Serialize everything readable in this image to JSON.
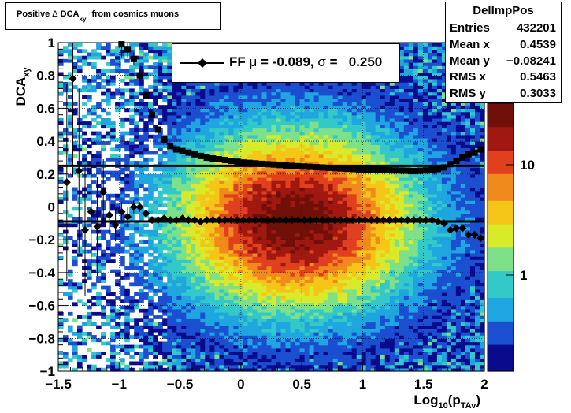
{
  "title": {
    "prefix": "Positive",
    "delta": "Δ",
    "main": "DCA",
    "sub": "xy",
    "suffix": "from cosmics muons"
  },
  "stats": {
    "name": "DelImpPos",
    "rows": [
      {
        "label": "Entries",
        "value": "432201"
      },
      {
        "label": "Mean x",
        "value": "0.4539"
      },
      {
        "label": "Mean y",
        "value": "−0.08241"
      },
      {
        "label": "RMS x",
        "value": "0.5463"
      },
      {
        "label": "RMS y",
        "value": "0.3033"
      }
    ]
  },
  "legend": {
    "entry": "FF",
    "mu_symbol": "μ",
    "mu_text": "= -0.089,",
    "sigma_symbol": "σ",
    "sigma_text": "=   0.250"
  },
  "axes": {
    "ylabel_main": "DCA",
    "ylabel_sub": "xy",
    "xlabel_main": "Log",
    "xlabel_sub10": "10",
    "xlabel_p": "(p",
    "xlabel_psub": "TAv",
    "xlabel_close": ")"
  },
  "colors": {
    "marker": "#000000",
    "palette": [
      "#0a0a8c",
      "#1b4fd0",
      "#1fa6e0",
      "#33c9c8",
      "#7fe08a",
      "#d8ea2a",
      "#f5c518",
      "#f08a1c",
      "#e0401e",
      "#a01810",
      "#701008"
    ]
  },
  "chart_data": {
    "type": "heatmap",
    "xlim": [
      -1.5,
      2.0
    ],
    "ylim": [
      -1.0,
      1.0
    ],
    "xticks": [
      "−1.5",
      "−1",
      "−0.5",
      "0",
      "0.5",
      "1",
      "1.5",
      "2"
    ],
    "yticks": [
      "−1",
      "−0.8",
      "−0.6",
      "−0.4",
      "−0.2",
      "0",
      "0.2",
      "0.4",
      "0.6",
      "0.8",
      "1"
    ],
    "zscale": "log",
    "zticks": [
      "1",
      "10"
    ],
    "grid": true,
    "heat_center": {
      "x": 0.45,
      "y": -0.08
    },
    "heat_width": {
      "x": 0.55,
      "y": 0.3
    },
    "reference_lines": [
      0.25,
      -0.089
    ],
    "series": [
      {
        "name": "sigma",
        "x": [
          -1.38,
          -1.33,
          -1.28,
          -1.23,
          -1.18,
          -1.13,
          -1.08,
          -1.03,
          -0.98,
          -0.93,
          -0.88,
          -0.83,
          -0.78,
          -0.73,
          -0.68,
          -0.63,
          -0.58,
          -0.53,
          -0.48,
          -0.43,
          -0.38,
          -0.33,
          -0.28,
          -0.23,
          -0.18,
          -0.13,
          -0.08,
          -0.03,
          0.02,
          0.07,
          0.12,
          0.17,
          0.22,
          0.27,
          0.32,
          0.37,
          0.42,
          0.47,
          0.52,
          0.57,
          0.62,
          0.67,
          0.72,
          0.77,
          0.82,
          0.87,
          0.92,
          0.97,
          1.02,
          1.07,
          1.12,
          1.17,
          1.22,
          1.27,
          1.32,
          1.37,
          1.42,
          1.47,
          1.52,
          1.57,
          1.62,
          1.67,
          1.72,
          1.77,
          1.82,
          1.87,
          1.92,
          1.97
        ],
        "y": [
          null,
          null,
          null,
          null,
          null,
          null,
          null,
          null,
          0.99,
          0.96,
          0.9,
          0.8,
          0.68,
          0.56,
          0.47,
          0.41,
          0.37,
          0.35,
          0.34,
          0.33,
          0.32,
          0.31,
          0.3,
          0.295,
          0.29,
          0.285,
          0.28,
          0.275,
          0.27,
          0.268,
          0.265,
          0.262,
          0.26,
          0.258,
          0.255,
          0.252,
          0.25,
          0.248,
          0.246,
          0.244,
          0.242,
          0.24,
          0.238,
          0.236,
          0.234,
          0.232,
          0.23,
          0.228,
          0.227,
          0.226,
          0.225,
          0.224,
          0.223,
          0.222,
          0.221,
          0.22,
          0.218,
          0.22,
          0.222,
          0.225,
          0.23,
          0.24,
          0.26,
          0.28,
          0.3,
          0.32,
          0.33,
          0.35
        ],
        "yerr": [
          null,
          null,
          null,
          null,
          null,
          null,
          null,
          null,
          0.08,
          0.05,
          0.04,
          0.03,
          0.02,
          0.015,
          0.01,
          0.01,
          0.01,
          0.01,
          0.01,
          0.01,
          0.01,
          0.01,
          0.01,
          0.01,
          0.01,
          0.01,
          0.01,
          0.01,
          0.01,
          0.01,
          0.01,
          0.01,
          0.01,
          0.01,
          0.01,
          0.01,
          0.01,
          0.01,
          0.01,
          0.01,
          0.01,
          0.01,
          0.01,
          0.01,
          0.01,
          0.01,
          0.01,
          0.01,
          0.01,
          0.01,
          0.01,
          0.01,
          0.01,
          0.01,
          0.01,
          0.01,
          0.01,
          0.01,
          0.01,
          0.01,
          0.01,
          0.01,
          0.01,
          0.01,
          0.01,
          0.01,
          0.01,
          0.01
        ]
      },
      {
        "name": "mean",
        "x": [
          -1.43,
          -1.38,
          -1.33,
          -1.28,
          -1.23,
          -1.18,
          -1.13,
          -1.08,
          -1.03,
          -0.98,
          -0.93,
          -0.88,
          -0.83,
          -0.78,
          -0.73,
          -0.68,
          -0.63,
          -0.58,
          -0.53,
          -0.48,
          -0.43,
          -0.38,
          -0.33,
          -0.28,
          -0.23,
          -0.18,
          -0.13,
          -0.08,
          -0.03,
          0.02,
          0.07,
          0.12,
          0.17,
          0.22,
          0.27,
          0.32,
          0.37,
          0.42,
          0.47,
          0.52,
          0.57,
          0.62,
          0.67,
          0.72,
          0.77,
          0.82,
          0.87,
          0.92,
          0.97,
          1.02,
          1.07,
          1.12,
          1.17,
          1.22,
          1.27,
          1.32,
          1.37,
          1.42,
          1.47,
          1.52,
          1.57,
          1.62,
          1.67,
          1.72,
          1.77,
          1.82,
          1.87,
          1.92,
          1.97
        ],
        "y": [
          0.15,
          0.78,
          0.22,
          -0.14,
          -0.03,
          -0.12,
          0.09,
          -0.05,
          -0.11,
          -0.03,
          -0.06,
          0.0,
          0.0,
          -0.04,
          -0.08,
          -0.08,
          -0.07,
          -0.08,
          -0.08,
          -0.07,
          -0.08,
          -0.08,
          -0.09,
          -0.08,
          -0.08,
          -0.08,
          -0.08,
          -0.08,
          -0.08,
          -0.08,
          -0.08,
          -0.08,
          -0.08,
          -0.08,
          -0.08,
          -0.08,
          -0.08,
          -0.08,
          -0.08,
          -0.08,
          -0.08,
          -0.08,
          -0.08,
          -0.08,
          -0.08,
          -0.08,
          -0.08,
          -0.08,
          -0.08,
          -0.08,
          -0.08,
          -0.08,
          -0.08,
          -0.08,
          -0.08,
          -0.08,
          -0.08,
          -0.08,
          -0.08,
          -0.08,
          -0.08,
          -0.09,
          -0.1,
          -0.14,
          -0.13,
          -0.13,
          -0.17,
          -0.17,
          -0.19
        ],
        "yerr": [
          0.6,
          0.6,
          0.5,
          0.4,
          0.35,
          0.3,
          0.2,
          0.12,
          0.1,
          0.06,
          0.06,
          0.04,
          0.03,
          0.02,
          0.01,
          0.01,
          0.01,
          0.01,
          0.01,
          0.01,
          0.01,
          0.01,
          0.01,
          0.01,
          0.01,
          0.01,
          0.01,
          0.01,
          0.01,
          0.01,
          0.01,
          0.01,
          0.01,
          0.01,
          0.01,
          0.01,
          0.01,
          0.01,
          0.01,
          0.01,
          0.01,
          0.01,
          0.01,
          0.01,
          0.01,
          0.01,
          0.01,
          0.01,
          0.01,
          0.01,
          0.01,
          0.01,
          0.01,
          0.01,
          0.01,
          0.01,
          0.01,
          0.01,
          0.01,
          0.01,
          0.01,
          0.01,
          0.01,
          0.01,
          0.01,
          0.01,
          0.01,
          0.01,
          0.01
        ]
      }
    ]
  }
}
